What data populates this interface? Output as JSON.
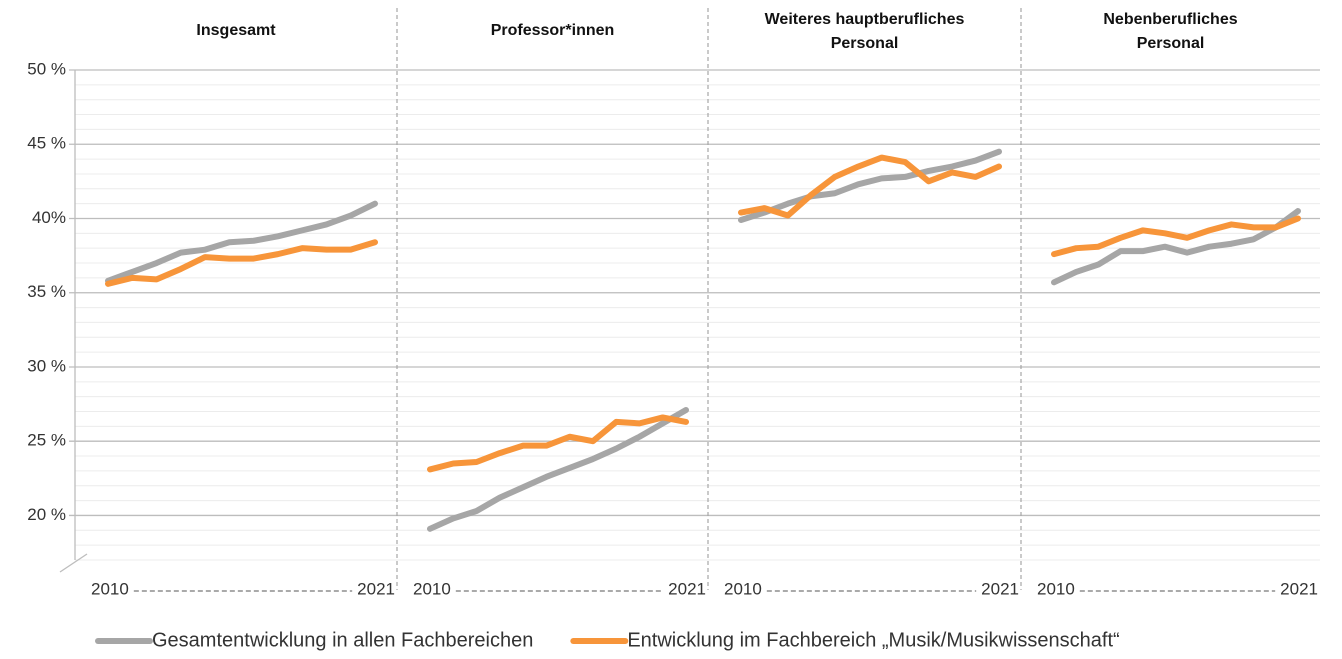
{
  "chart_data": {
    "type": "line",
    "ylim": [
      17,
      50
    ],
    "yticks": [
      {
        "value": 50,
        "label": "50 %"
      },
      {
        "value": 45,
        "label": "45 %"
      },
      {
        "value": 40,
        "label": "40%"
      },
      {
        "value": 35,
        "label": "35 %"
      },
      {
        "value": 30,
        "label": "30 %"
      },
      {
        "value": 25,
        "label": "25 %"
      },
      {
        "value": 20,
        "label": "20 %"
      }
    ],
    "minor_grid_step": 1,
    "grid": true,
    "series": [
      {
        "name": "Gesamtentwicklung in allen Fachbereichen",
        "color": "#a6a6a6"
      },
      {
        "name": "Entwicklung im Fachbereich „Musik/Musikwissenschaft“",
        "color": "#f7953a"
      }
    ],
    "panels": [
      {
        "title": [
          "Insgesamt"
        ],
        "categories": [
          "2010",
          null,
          null,
          null,
          null,
          null,
          null,
          null,
          null,
          null,
          null,
          "2021"
        ],
        "values": [
          [
            35.8,
            36.4,
            37.0,
            37.7,
            37.9,
            38.4,
            38.5,
            38.8,
            39.2,
            39.6,
            40.2,
            41.0
          ],
          [
            35.6,
            36.0,
            35.9,
            36.6,
            37.4,
            37.3,
            37.3,
            37.6,
            38.0,
            37.9,
            37.9,
            38.4
          ]
        ]
      },
      {
        "title": [
          "Professor*innen"
        ],
        "categories": [
          "2010",
          null,
          null,
          null,
          null,
          null,
          null,
          null,
          null,
          null,
          null,
          "2021"
        ],
        "values": [
          [
            19.1,
            19.8,
            20.3,
            21.2,
            21.9,
            22.6,
            23.2,
            23.8,
            24.5,
            25.3,
            26.2,
            27.1
          ],
          [
            23.1,
            23.5,
            23.6,
            24.2,
            24.7,
            24.7,
            25.3,
            25.0,
            26.3,
            26.2,
            26.6,
            26.3
          ]
        ]
      },
      {
        "title": [
          "Weiteres hauptberufliches",
          "Personal"
        ],
        "categories": [
          "2010",
          null,
          null,
          null,
          null,
          null,
          null,
          null,
          null,
          null,
          null,
          "2021"
        ],
        "values": [
          [
            39.9,
            40.4,
            41.0,
            41.5,
            41.7,
            42.3,
            42.7,
            42.8,
            43.2,
            43.5,
            43.9,
            44.5
          ],
          [
            40.4,
            40.7,
            40.2,
            41.6,
            42.8,
            43.5,
            44.1,
            43.8,
            42.5,
            43.1,
            42.8,
            43.5
          ]
        ]
      },
      {
        "title": [
          "Nebenberufliches",
          "Personal"
        ],
        "categories": [
          "2010",
          null,
          null,
          null,
          null,
          null,
          null,
          null,
          null,
          null,
          null,
          "2021"
        ],
        "values": [
          [
            35.7,
            36.4,
            36.9,
            37.8,
            37.8,
            38.1,
            37.7,
            38.1,
            38.3,
            38.6,
            39.4,
            40.5
          ],
          [
            37.6,
            38.0,
            38.1,
            38.7,
            39.2,
            39.0,
            38.7,
            39.2,
            39.6,
            39.4,
            39.4,
            40.0
          ]
        ]
      }
    ]
  }
}
